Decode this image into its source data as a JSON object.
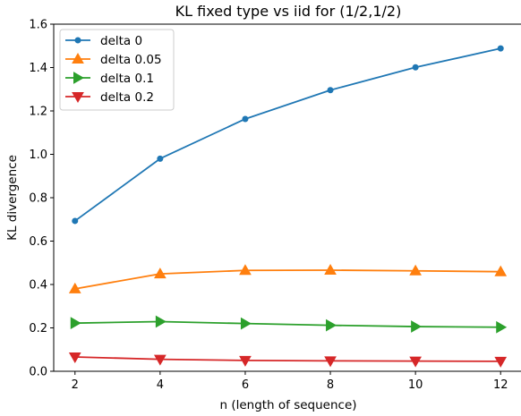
{
  "chart_data": {
    "type": "line",
    "title": "KL fixed type vs iid for (1/2,1/2)",
    "xlabel": "n (length of sequence)",
    "ylabel": "KL divergence",
    "x": [
      2,
      4,
      6,
      8,
      10,
      12
    ],
    "xlim": [
      1.5,
      12.5
    ],
    "ylim": [
      0,
      1.6
    ],
    "xticks": [
      "2",
      "4",
      "6",
      "8",
      "10",
      "12"
    ],
    "yticks": [
      "0.0",
      "0.2",
      "0.4",
      "0.6",
      "0.8",
      "1.0",
      "1.2",
      "1.4",
      "1.6"
    ],
    "grid": false,
    "legend_position": "top-left",
    "series": [
      {
        "name": "delta 0",
        "color": "#1f77b4",
        "marker": "circle",
        "values": [
          0.693,
          0.98,
          1.163,
          1.296,
          1.401,
          1.488
        ]
      },
      {
        "name": "delta 0.05",
        "color": "#ff7f0e",
        "marker": "triangle-up",
        "values": [
          0.38,
          0.449,
          0.465,
          0.466,
          0.463,
          0.459
        ]
      },
      {
        "name": "delta 0.1",
        "color": "#2ca02c",
        "marker": "triangle-right",
        "values": [
          0.222,
          0.229,
          0.22,
          0.212,
          0.206,
          0.203
        ]
      },
      {
        "name": "delta 0.2",
        "color": "#d62728",
        "marker": "triangle-down",
        "values": [
          0.066,
          0.055,
          0.05,
          0.048,
          0.047,
          0.046
        ]
      }
    ]
  }
}
